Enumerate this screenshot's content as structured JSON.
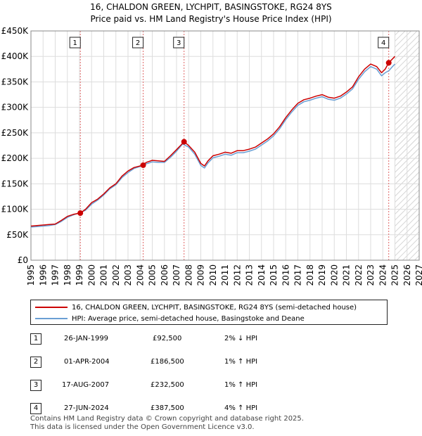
{
  "header": {
    "title_line1": "16, CHALDON GREEN, LYCHPIT, BASINGSTOKE, RG24 8YS",
    "title_line2": "Price paid vs. HM Land Registry's House Price Index (HPI)"
  },
  "chart_data": {
    "type": "line",
    "title": "16, CHALDON GREEN, LYCHPIT, BASINGSTOKE, RG24 8YS",
    "subtitle": "Price paid vs. HM Land Registry's House Price Index (HPI)",
    "xlabel": "",
    "ylabel": "",
    "xlim": [
      1995,
      2027
    ],
    "ylim": [
      0,
      450000
    ],
    "x_ticks": [
      "1995",
      "1996",
      "1997",
      "1998",
      "1999",
      "2000",
      "2001",
      "2002",
      "2003",
      "2004",
      "2005",
      "2006",
      "2007",
      "2008",
      "2009",
      "2010",
      "2011",
      "2012",
      "2013",
      "2014",
      "2015",
      "2016",
      "2017",
      "2018",
      "2019",
      "2020",
      "2021",
      "2022",
      "2023",
      "2024",
      "2025",
      "2026",
      "2027"
    ],
    "y_ticks": [
      {
        "value": 0,
        "label": "£0"
      },
      {
        "value": 50000,
        "label": "£50K"
      },
      {
        "value": 100000,
        "label": "£100K"
      },
      {
        "value": 150000,
        "label": "£150K"
      },
      {
        "value": 200000,
        "label": "£200K"
      },
      {
        "value": 250000,
        "label": "£250K"
      },
      {
        "value": 300000,
        "label": "£300K"
      },
      {
        "value": 350000,
        "label": "£350K"
      },
      {
        "value": 400000,
        "label": "£400K"
      },
      {
        "value": 450000,
        "label": "£450K"
      }
    ],
    "grid": true,
    "forecast_from": 2025.0,
    "series": [
      {
        "name": "16, CHALDON GREEN, LYCHPIT, BASINGSTOKE, RG24 8YS (semi-detached house)",
        "color": "#cc0000",
        "x": [
          1995.0,
          1995.5,
          1996.0,
          1996.5,
          1997.0,
          1997.5,
          1998.0,
          1998.5,
          1999.07,
          1999.5,
          2000.0,
          2000.5,
          2001.0,
          2001.5,
          2002.0,
          2002.5,
          2003.0,
          2003.5,
          2004.25,
          2004.5,
          2005.0,
          2005.5,
          2006.0,
          2006.5,
          2007.0,
          2007.62,
          2008.0,
          2008.5,
          2009.0,
          2009.3,
          2009.6,
          2010.0,
          2010.5,
          2011.0,
          2011.5,
          2012.0,
          2012.5,
          2013.0,
          2013.5,
          2014.0,
          2014.5,
          2015.0,
          2015.5,
          2016.0,
          2016.5,
          2017.0,
          2017.5,
          2018.0,
          2018.5,
          2019.0,
          2019.5,
          2020.0,
          2020.5,
          2021.0,
          2021.5,
          2022.0,
          2022.5,
          2023.0,
          2023.5,
          2023.9,
          2024.2,
          2024.49,
          2024.8,
          2025.0
        ],
        "values": [
          67000,
          68000,
          69000,
          70000,
          71000,
          78000,
          86000,
          90000,
          92500,
          100000,
          113000,
          120000,
          130000,
          142000,
          150000,
          165000,
          175000,
          182000,
          186500,
          192000,
          196000,
          195000,
          194000,
          205000,
          217000,
          232500,
          225000,
          212000,
          190000,
          185000,
          195000,
          205000,
          208000,
          212000,
          210000,
          215000,
          215000,
          218000,
          222000,
          230000,
          238000,
          248000,
          262000,
          280000,
          295000,
          308000,
          315000,
          318000,
          322000,
          325000,
          320000,
          318000,
          322000,
          330000,
          340000,
          360000,
          375000,
          385000,
          380000,
          368000,
          375000,
          387500,
          395000,
          400000
        ]
      },
      {
        "name": "HPI: Average price, semi-detached house, Basingstoke and Deane",
        "color": "#6a9fd4",
        "x": [
          1995.0,
          1995.5,
          1996.0,
          1996.5,
          1997.0,
          1997.5,
          1998.0,
          1998.5,
          1999.0,
          1999.5,
          2000.0,
          2000.5,
          2001.0,
          2001.5,
          2002.0,
          2002.5,
          2003.0,
          2003.5,
          2004.0,
          2004.5,
          2005.0,
          2005.5,
          2006.0,
          2006.5,
          2007.0,
          2007.5,
          2008.0,
          2008.5,
          2009.0,
          2009.3,
          2009.6,
          2010.0,
          2010.5,
          2011.0,
          2011.5,
          2012.0,
          2012.5,
          2013.0,
          2013.5,
          2014.0,
          2014.5,
          2015.0,
          2015.5,
          2016.0,
          2016.5,
          2017.0,
          2017.5,
          2018.0,
          2018.5,
          2019.0,
          2019.5,
          2020.0,
          2020.5,
          2021.0,
          2021.5,
          2022.0,
          2022.5,
          2023.0,
          2023.5,
          2023.9,
          2024.2,
          2024.5,
          2024.8,
          2025.0
        ],
        "values": [
          65000,
          66000,
          67000,
          68000,
          70000,
          76000,
          84000,
          89000,
          93000,
          98000,
          110000,
          118000,
          128000,
          140000,
          148000,
          162000,
          172000,
          180000,
          184000,
          189000,
          193000,
          192000,
          192000,
          202000,
          214000,
          228000,
          222000,
          208000,
          186000,
          181000,
          191000,
          201000,
          204000,
          208000,
          206000,
          211000,
          211000,
          214000,
          218000,
          226000,
          234000,
          244000,
          258000,
          276000,
          291000,
          304000,
          311000,
          314000,
          318000,
          321000,
          316000,
          314000,
          318000,
          326000,
          336000,
          355000,
          370000,
          380000,
          375000,
          362000,
          368000,
          372000,
          380000,
          385000
        ]
      }
    ],
    "sales": [
      {
        "label": "1",
        "x": 1999.07,
        "value": 92500
      },
      {
        "label": "2",
        "x": 2004.25,
        "value": 186500
      },
      {
        "label": "3",
        "x": 2007.62,
        "value": 232500
      },
      {
        "label": "4",
        "x": 2024.49,
        "value": 387500
      }
    ]
  },
  "legend": {
    "property_label": "16, CHALDON GREEN, LYCHPIT, BASINGSTOKE, RG24 8YS (semi-detached house)",
    "hpi_label": "HPI: Average price, semi-detached house, Basingstoke and Deane",
    "property_color": "#cc0000",
    "hpi_color": "#6a9fd4"
  },
  "transactions": [
    {
      "num": "1",
      "date": "26-JAN-1999",
      "price": "£92,500",
      "hpi": "2% ↓ HPI"
    },
    {
      "num": "2",
      "date": "01-APR-2004",
      "price": "£186,500",
      "hpi": "1% ↑ HPI"
    },
    {
      "num": "3",
      "date": "17-AUG-2007",
      "price": "£232,500",
      "hpi": "1% ↑ HPI"
    },
    {
      "num": "4",
      "date": "27-JUN-2024",
      "price": "£387,500",
      "hpi": "4% ↑ HPI"
    }
  ],
  "footer": {
    "line1": "Contains HM Land Registry data © Crown copyright and database right 2025.",
    "line2": "This data is licensed under the Open Government Licence v3.0."
  }
}
